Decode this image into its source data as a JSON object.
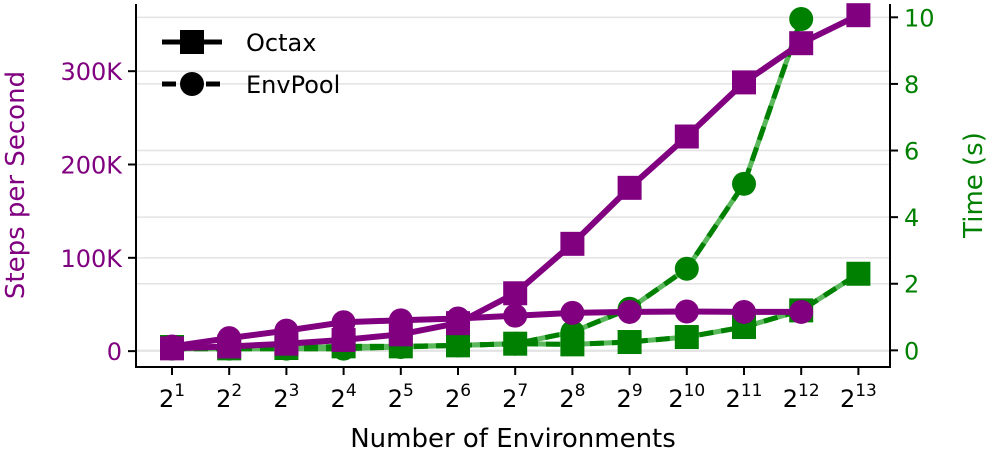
{
  "chart_data": {
    "type": "line",
    "xlabel": "Number of Environments",
    "ylabel_left": "Steps per Second",
    "ylabel_right": "Time (s)",
    "x_base": "2",
    "x_exponents": [
      "1",
      "2",
      "3",
      "4",
      "5",
      "6",
      "7",
      "8",
      "9",
      "10",
      "11",
      "12",
      "13"
    ],
    "left_axis": {
      "ylim": [
        -17000,
        372000
      ],
      "ticks": [
        0,
        100000,
        200000,
        300000
      ],
      "tick_labels": [
        "0",
        "100K",
        "200K",
        "300K"
      ]
    },
    "right_axis": {
      "ylim": [
        -0.5,
        10.4
      ],
      "ticks": [
        0,
        2,
        4,
        6,
        8,
        10
      ],
      "tick_labels": [
        "0",
        "2",
        "4",
        "6",
        "8",
        "10"
      ]
    },
    "grid": true,
    "legend": {
      "placement": "top-left",
      "entries": [
        {
          "label": "Octax",
          "marker": "square",
          "linestyle": "solid"
        },
        {
          "label": "EnvPool",
          "marker": "circle",
          "linestyle": "dashed"
        }
      ]
    },
    "colors": {
      "steps": "#800080",
      "time": "#008000",
      "time_light": "#5cb85c"
    },
    "series": [
      {
        "name": "Octax",
        "metric": "Steps per Second",
        "axis": "left",
        "marker": "square",
        "linestyle": "solid",
        "values": [
          3000,
          5000,
          8000,
          12000,
          18000,
          30000,
          62000,
          115000,
          175000,
          230000,
          288000,
          330000,
          360000
        ]
      },
      {
        "name": "EnvPool",
        "metric": "Steps per Second",
        "axis": "left",
        "marker": "circle",
        "linestyle": "solid",
        "values": [
          5000,
          14000,
          22000,
          31000,
          33000,
          35000,
          38000,
          41000,
          42000,
          42500,
          42000,
          42000,
          null
        ]
      },
      {
        "name": "Octax",
        "metric": "Time (s)",
        "axis": "right",
        "marker": "square",
        "linestyle": "dashed",
        "values": [
          0.1,
          0.06,
          0.07,
          0.12,
          0.12,
          0.15,
          0.2,
          0.18,
          0.25,
          0.4,
          0.7,
          1.2,
          2.3
        ]
      },
      {
        "name": "EnvPool",
        "metric": "Time (s)",
        "axis": "right",
        "marker": "circle",
        "linestyle": "dashed",
        "values": [
          0.05,
          0.05,
          0.05,
          0.05,
          0.1,
          0.15,
          0.2,
          0.55,
          1.25,
          2.45,
          5.0,
          9.95,
          null
        ]
      }
    ]
  }
}
